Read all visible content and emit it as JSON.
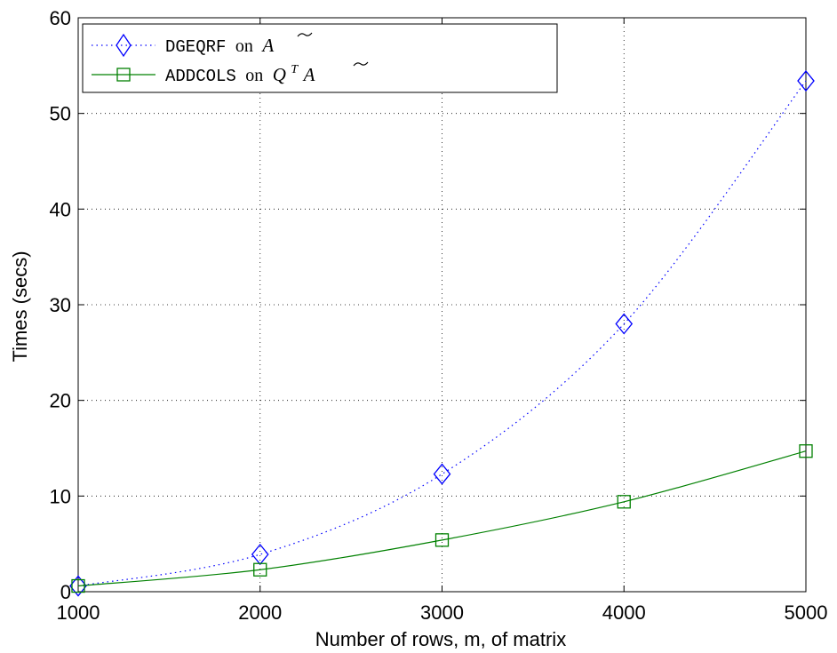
{
  "chart_data": {
    "type": "line",
    "title": "",
    "xlabel": "Number of rows, m, of matrix",
    "ylabel": "Times (secs)",
    "x": [
      1000,
      2000,
      3000,
      4000,
      5000
    ],
    "xlim": [
      1000,
      5000
    ],
    "ylim": [
      0,
      60
    ],
    "xticks": [
      "1000",
      "2000",
      "3000",
      "4000",
      "5000"
    ],
    "yticks": [
      "0",
      "10",
      "20",
      "30",
      "40",
      "50",
      "60"
    ],
    "grid": true,
    "legend_position": "top-left",
    "series": [
      {
        "name": "DGEQRF on Ã",
        "legend_code": "DGEQRF",
        "legend_word": "on",
        "legend_math": "A",
        "legend_sup": "",
        "values": [
          0.6,
          3.9,
          12.3,
          28.0,
          53.4
        ],
        "color": "#0000ff",
        "line_style": "dotted",
        "marker": "diamond"
      },
      {
        "name": "ADDCOLS on QᵀÃ",
        "legend_code": "ADDCOLS",
        "legend_word": "on",
        "legend_math": "Q",
        "legend_sup": "T",
        "legend_math2": "A",
        "values": [
          0.6,
          2.3,
          5.4,
          9.4,
          14.7
        ],
        "color": "#008000",
        "line_style": "solid",
        "marker": "square"
      }
    ]
  }
}
